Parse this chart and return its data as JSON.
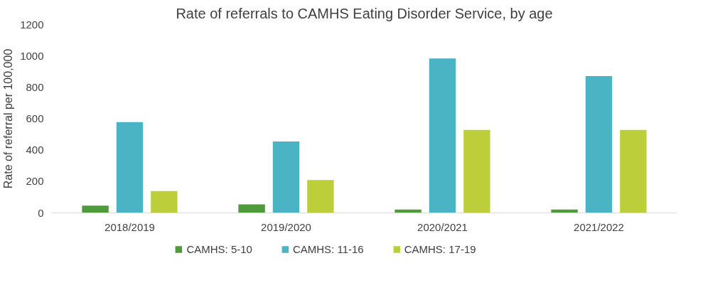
{
  "chart_data": {
    "type": "bar",
    "title": "Rate of referrals to CAMHS Eating Disorder Service, by age",
    "ylabel": "Rate of referral per 100,000",
    "categories": [
      "2018/2019",
      "2019/2020",
      "2020/2021",
      "2021/2022"
    ],
    "series": [
      {
        "name": "CAMHS: 5-10",
        "color": "#4f9a3a",
        "values": [
          46,
          54,
          21,
          21
        ]
      },
      {
        "name": "CAMHS: 11-16",
        "color": "#4ab3c4",
        "values": [
          578,
          455,
          984,
          872
        ]
      },
      {
        "name": "CAMHS: 17-19",
        "color": "#bccf3a",
        "values": [
          139,
          210,
          529,
          529
        ]
      }
    ],
    "ylim": [
      0,
      1200
    ],
    "yticks": [
      0,
      200,
      400,
      600,
      800,
      1000,
      1200
    ],
    "grid": false,
    "legend": "bottom"
  }
}
